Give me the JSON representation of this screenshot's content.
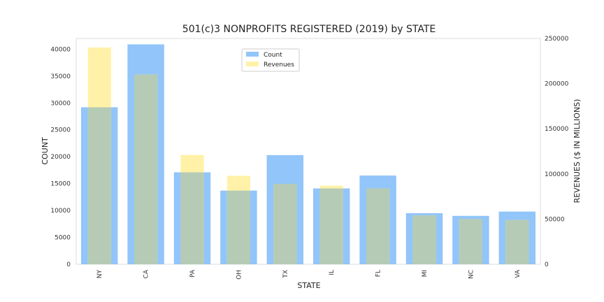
{
  "chart_data": {
    "type": "bar",
    "title": "501(c)3 NONPROFITS REGISTERED (2019) by STATE",
    "xlabel": "STATE",
    "ylabel": "COUNT",
    "y2label": "REVENUES ($ IN MILLIONS)",
    "categories": [
      "NY",
      "CA",
      "PA",
      "OH",
      "TX",
      "IL",
      "FL",
      "MI",
      "NC",
      "VA"
    ],
    "ylim": [
      0,
      42000
    ],
    "y2lim": [
      0,
      250000
    ],
    "yticks": [
      0,
      5000,
      10000,
      15000,
      20000,
      25000,
      30000,
      35000,
      40000
    ],
    "y2ticks": [
      0,
      50000,
      100000,
      150000,
      200000,
      250000
    ],
    "series": [
      {
        "name": "Count",
        "axis": "left",
        "color": "#92c5f9",
        "values": [
          29200,
          40900,
          17100,
          13700,
          20300,
          14100,
          16500,
          9500,
          9000,
          9800
        ]
      },
      {
        "name": "Revenues",
        "axis": "right",
        "color": "#fff2a8",
        "values": [
          240000,
          210000,
          121000,
          98000,
          89000,
          87000,
          84000,
          54000,
          50000,
          49000
        ]
      }
    ],
    "overlap_color": "#b5cbb5",
    "legend_position": "top-center",
    "grid": false
  }
}
